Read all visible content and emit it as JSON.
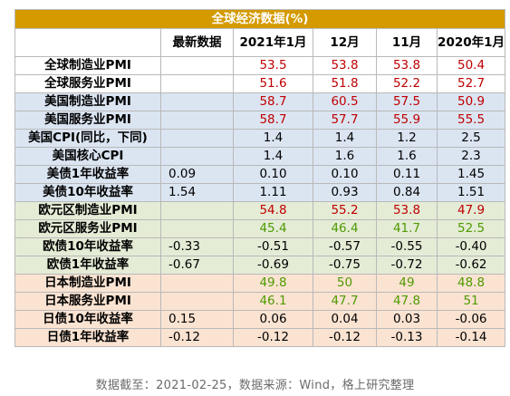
{
  "title": "全球经济数据(%)",
  "headers": [
    "",
    "最新数据",
    "2021年1月",
    "12月",
    "11月",
    "2020年1月"
  ],
  "rows": [
    {
      "label": "全球制造业PMI",
      "group": "white",
      "color": "red",
      "latest": "",
      "values": [
        "53.5",
        "53.8",
        "53.8",
        "50.4"
      ]
    },
    {
      "label": "全球服务业PMI",
      "group": "white",
      "color": "red",
      "latest": "",
      "values": [
        "51.6",
        "51.8",
        "52.2",
        "52.7"
      ]
    },
    {
      "label": "美国制造业PMI",
      "group": "blue",
      "color": "red",
      "latest": "",
      "values": [
        "58.7",
        "60.5",
        "57.5",
        "50.9"
      ]
    },
    {
      "label": "美国服务业PMI",
      "group": "blue",
      "color": "red",
      "latest": "",
      "values": [
        "58.7",
        "57.7",
        "55.9",
        "55.5"
      ]
    },
    {
      "label": "美国CPI(同比，下同)",
      "group": "blue",
      "color": "black",
      "latest": "",
      "values": [
        "1.4",
        "1.4",
        "1.2",
        "2.5"
      ]
    },
    {
      "label": "美国核心CPI",
      "group": "blue",
      "color": "black",
      "latest": "",
      "values": [
        "1.4",
        "1.6",
        "1.6",
        "2.3"
      ]
    },
    {
      "label": "美债1年收益率",
      "group": "blue",
      "color": "black",
      "latest": "0.09",
      "values": [
        "0.10",
        "0.10",
        "0.11",
        "1.45"
      ]
    },
    {
      "label": "美债10年收益率",
      "group": "blue",
      "color": "black",
      "latest": "1.54",
      "values": [
        "1.11",
        "0.93",
        "0.84",
        "1.51"
      ]
    },
    {
      "label": "欧元区制造业PMI",
      "group": "green",
      "color": "red",
      "latest": "",
      "values": [
        "54.8",
        "55.2",
        "53.8",
        "47.9"
      ]
    },
    {
      "label": "欧元区服务业PMI",
      "group": "green",
      "color": "green",
      "latest": "",
      "values": [
        "45.4",
        "46.4",
        "41.7",
        "52.5"
      ]
    },
    {
      "label": "欧债10年收益率",
      "group": "green",
      "color": "black",
      "latest": "-0.33",
      "values": [
        "-0.51",
        "-0.57",
        "-0.55",
        "-0.40"
      ]
    },
    {
      "label": "欧债1年收益率",
      "group": "green",
      "color": "black",
      "latest": "-0.67",
      "values": [
        "-0.69",
        "-0.75",
        "-0.72",
        "-0.62"
      ]
    },
    {
      "label": "日本制造业PMI",
      "group": "orange",
      "color": "green",
      "latest": "",
      "values": [
        "49.8",
        "50",
        "49",
        "48.8"
      ]
    },
    {
      "label": "日本服务业PMI",
      "group": "orange",
      "color": "green",
      "latest": "",
      "values": [
        "46.1",
        "47.7",
        "47.8",
        "51"
      ]
    },
    {
      "label": "日债10年收益率",
      "group": "orange",
      "color": "black",
      "latest": "0.15",
      "values": [
        "0.06",
        "0.04",
        "0.03",
        "-0.06"
      ]
    },
    {
      "label": "日债1年收益率",
      "group": "orange",
      "color": "black",
      "latest": "-0.12",
      "values": [
        "-0.12",
        "-0.12",
        "-0.13",
        "-0.14"
      ]
    }
  ],
  "cell_colors": {
    "title_bg": "#d49a00",
    "blue_bg": "#dbe5f2",
    "green_bg": "#e4ecd6",
    "orange_bg": "#fbe3d2",
    "red_text": "#c00000",
    "green_text": "#4f9a00"
  },
  "footer": "数据截至：2021-02-25，数据来源：Wind，格上研究整理"
}
